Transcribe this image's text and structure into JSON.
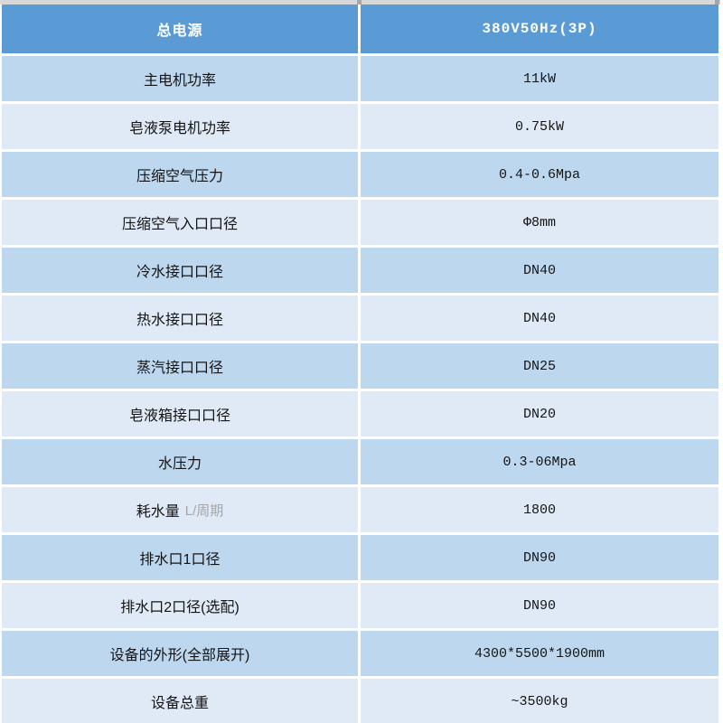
{
  "table": {
    "header": {
      "label": "总电源",
      "value": "380V50Hz(3P)"
    },
    "rows": [
      {
        "label": "主电机功率",
        "label_suffix": "",
        "value": "11kW"
      },
      {
        "label": "皂液泵电机功率",
        "label_suffix": "",
        "value": "0.75kW"
      },
      {
        "label": "压缩空气压力",
        "label_suffix": "",
        "value": "0.4-0.6Mpa"
      },
      {
        "label": "压缩空气入口口径",
        "label_suffix": "",
        "value": "Φ8mm"
      },
      {
        "label": "冷水接口口径",
        "label_suffix": "",
        "value": "DN40"
      },
      {
        "label": "热水接口口径",
        "label_suffix": "",
        "value": "DN40"
      },
      {
        "label": "蒸汽接口口径",
        "label_suffix": "",
        "value": "DN25"
      },
      {
        "label": "皂液箱接口口径",
        "label_suffix": "",
        "value": "DN20"
      },
      {
        "label": "水压力",
        "label_suffix": "",
        "value": "0.3-06Mpa"
      },
      {
        "label": "耗水量",
        "label_suffix": "L/周期",
        "value": "1800"
      },
      {
        "label": "排水口1口径",
        "label_suffix": "",
        "value": "DN90"
      },
      {
        "label": "排水口2口径(选配)",
        "label_suffix": "",
        "value": "DN90"
      },
      {
        "label": "设备的外形(全部展开)",
        "label_suffix": "",
        "value": "4300*5500*1900mm"
      },
      {
        "label": "设备总重",
        "label_suffix": "",
        "value": "~3500kg"
      }
    ]
  },
  "colors": {
    "header_bg": "#5b9bd5",
    "row_stripe_dark": "#bdd7ee",
    "row_stripe_light": "#dfeaf6",
    "separator": "#ffffff",
    "top_strip": "#d8d8d8",
    "top_strip_divider": "#a6a6a6",
    "header_text": "#ffffff",
    "body_text": "#141414",
    "muted_text": "#a6a6a6"
  }
}
